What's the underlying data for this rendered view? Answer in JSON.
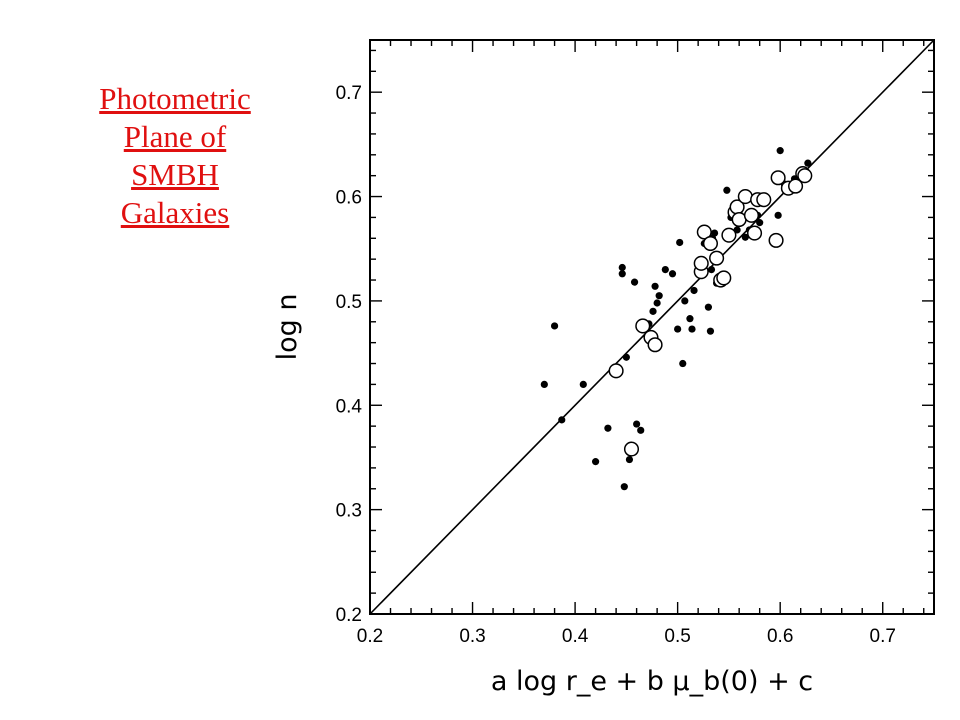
{
  "slide": {
    "title_lines": [
      "Photometric",
      "Plane of",
      "SMBH",
      "Galaxies"
    ]
  },
  "chart_data": {
    "type": "scatter",
    "title": "",
    "xlabel": "a log r_e + b μ_b(0) + c",
    "ylabel": "log n",
    "xlim": [
      0.2,
      0.75
    ],
    "ylim": [
      0.2,
      0.75
    ],
    "x_ticks": [
      0.2,
      0.3,
      0.4,
      0.5,
      0.6,
      0.7
    ],
    "x_tick_labels": [
      "0.2",
      "0.3",
      "0.4",
      "0.5",
      "0.6",
      "0.7"
    ],
    "y_ticks": [
      0.2,
      0.3,
      0.4,
      0.5,
      0.6,
      0.7
    ],
    "y_tick_labels": [
      "0.2",
      "0.3",
      "0.4",
      "0.5",
      "0.6",
      "0.7"
    ],
    "grid": false,
    "fit_line": {
      "x": [
        0.2,
        0.75
      ],
      "y": [
        0.2,
        0.75
      ]
    },
    "series": [
      {
        "marker": "filled-dot",
        "points": [
          [
            0.37,
            0.42
          ],
          [
            0.38,
            0.476
          ],
          [
            0.387,
            0.386
          ],
          [
            0.408,
            0.42
          ],
          [
            0.42,
            0.346
          ],
          [
            0.432,
            0.378
          ],
          [
            0.446,
            0.532
          ],
          [
            0.446,
            0.526
          ],
          [
            0.448,
            0.322
          ],
          [
            0.45,
            0.446
          ],
          [
            0.453,
            0.348
          ],
          [
            0.458,
            0.518
          ],
          [
            0.46,
            0.382
          ],
          [
            0.464,
            0.376
          ],
          [
            0.472,
            0.478
          ],
          [
            0.476,
            0.49
          ],
          [
            0.478,
            0.514
          ],
          [
            0.48,
            0.498
          ],
          [
            0.482,
            0.505
          ],
          [
            0.488,
            0.53
          ],
          [
            0.495,
            0.526
          ],
          [
            0.5,
            0.473
          ],
          [
            0.502,
            0.556
          ],
          [
            0.505,
            0.44
          ],
          [
            0.507,
            0.5
          ],
          [
            0.512,
            0.483
          ],
          [
            0.514,
            0.473
          ],
          [
            0.516,
            0.51
          ],
          [
            0.52,
            0.53
          ],
          [
            0.526,
            0.555
          ],
          [
            0.53,
            0.494
          ],
          [
            0.532,
            0.471
          ],
          [
            0.533,
            0.53
          ],
          [
            0.534,
            0.56
          ],
          [
            0.536,
            0.565
          ],
          [
            0.538,
            0.517
          ],
          [
            0.54,
            0.522
          ],
          [
            0.544,
            0.521
          ],
          [
            0.545,
            0.525
          ],
          [
            0.548,
            0.606
          ],
          [
            0.552,
            0.58
          ],
          [
            0.555,
            0.59
          ],
          [
            0.558,
            0.568
          ],
          [
            0.566,
            0.561
          ],
          [
            0.57,
            0.568
          ],
          [
            0.578,
            0.582
          ],
          [
            0.58,
            0.575
          ],
          [
            0.598,
            0.582
          ],
          [
            0.6,
            0.644
          ],
          [
            0.604,
            0.612
          ],
          [
            0.61,
            0.61
          ],
          [
            0.614,
            0.617
          ],
          [
            0.622,
            0.625
          ],
          [
            0.627,
            0.632
          ]
        ]
      },
      {
        "marker": "open-circle",
        "points": [
          [
            0.44,
            0.433
          ],
          [
            0.455,
            0.358
          ],
          [
            0.466,
            0.476
          ],
          [
            0.474,
            0.465
          ],
          [
            0.478,
            0.458
          ],
          [
            0.523,
            0.528
          ],
          [
            0.523,
            0.536
          ],
          [
            0.526,
            0.566
          ],
          [
            0.532,
            0.555
          ],
          [
            0.538,
            0.541
          ],
          [
            0.542,
            0.52
          ],
          [
            0.545,
            0.522
          ],
          [
            0.55,
            0.563
          ],
          [
            0.556,
            0.585
          ],
          [
            0.558,
            0.59
          ],
          [
            0.56,
            0.578
          ],
          [
            0.566,
            0.6
          ],
          [
            0.572,
            0.582
          ],
          [
            0.575,
            0.565
          ],
          [
            0.578,
            0.597
          ],
          [
            0.584,
            0.597
          ],
          [
            0.596,
            0.558
          ],
          [
            0.598,
            0.618
          ],
          [
            0.608,
            0.608
          ],
          [
            0.615,
            0.61
          ],
          [
            0.622,
            0.622
          ],
          [
            0.624,
            0.62
          ]
        ]
      }
    ]
  }
}
